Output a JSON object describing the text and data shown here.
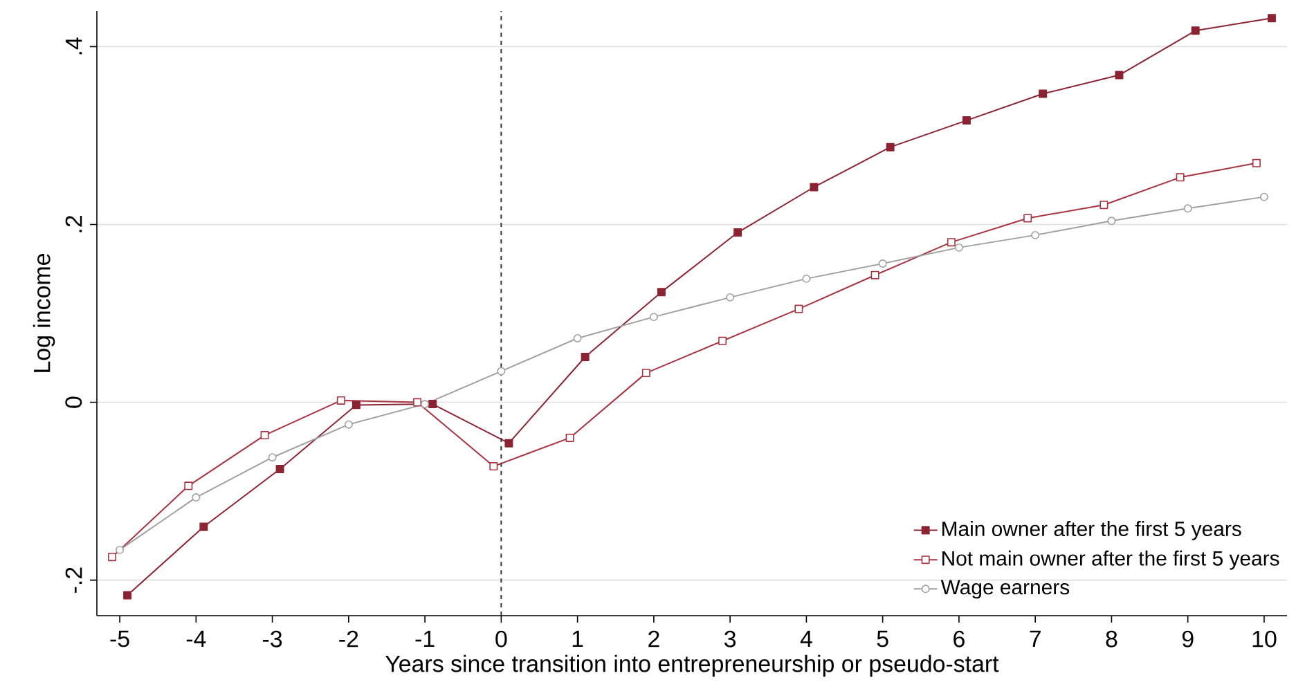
{
  "chart_data": {
    "type": "line",
    "xlabel": "Years since transition into entrepreneurship or pseudo-start",
    "ylabel": "Log income",
    "xlim": [
      -5.3,
      10.3
    ],
    "ylim": [
      -0.24,
      0.44
    ],
    "xticks": [
      -5,
      -4,
      -3,
      -2,
      -1,
      0,
      1,
      2,
      3,
      4,
      5,
      6,
      7,
      8,
      9,
      10
    ],
    "yticks": [
      {
        "value": -0.2,
        "label": "-.2"
      },
      0,
      {
        "value": 0.2,
        "label": ".2"
      },
      {
        "value": 0.4,
        "label": ".4"
      }
    ],
    "grid": "y",
    "legend": "bottom right",
    "ref_lines": [
      {
        "axis": "x",
        "value": 0,
        "label": null,
        "color": "#333333",
        "line_style": "dashed"
      }
    ],
    "series": [
      {
        "name": "Main owner after the first 5 years",
        "color": "#8b2332",
        "marker": "square",
        "x": [
          -4.9,
          -3.9,
          -2.9,
          -1.9,
          -0.9,
          0.1,
          1.1,
          2.1,
          3.1,
          4.1,
          5.1,
          6.1,
          7.1,
          8.1,
          9.1,
          10.1
        ],
        "values": [
          -0.217,
          -0.14,
          -0.075,
          -0.003,
          -0.002,
          -0.046,
          0.051,
          0.124,
          0.191,
          0.242,
          0.287,
          0.317,
          0.347,
          0.368,
          0.418,
          0.432
        ]
      },
      {
        "name": "Not main owner after the first 5 years",
        "color": "#a83240",
        "marker": "square",
        "x": [
          -5.1,
          -4.1,
          -3.1,
          -2.1,
          -1.1,
          -0.1,
          0.9,
          1.9,
          2.9,
          3.9,
          4.9,
          5.9,
          6.9,
          7.9,
          8.9,
          9.9
        ],
        "values": [
          -0.174,
          -0.094,
          -0.037,
          0.002,
          0.0,
          -0.072,
          -0.04,
          0.033,
          0.069,
          0.105,
          0.143,
          0.18,
          0.207,
          0.222,
          0.253,
          0.269
        ]
      },
      {
        "name": "Wage earners",
        "color": "#a0a0a0",
        "marker": "circle",
        "x": [
          -5,
          -4,
          -3,
          -2,
          -1,
          0,
          1,
          2,
          3,
          4,
          5,
          6,
          7,
          8,
          9,
          10
        ],
        "values": [
          -0.166,
          -0.107,
          -0.062,
          -0.025,
          -0.002,
          0.035,
          0.072,
          0.096,
          0.118,
          0.139,
          0.156,
          0.174,
          0.188,
          0.204,
          0.218,
          0.231
        ]
      }
    ]
  }
}
